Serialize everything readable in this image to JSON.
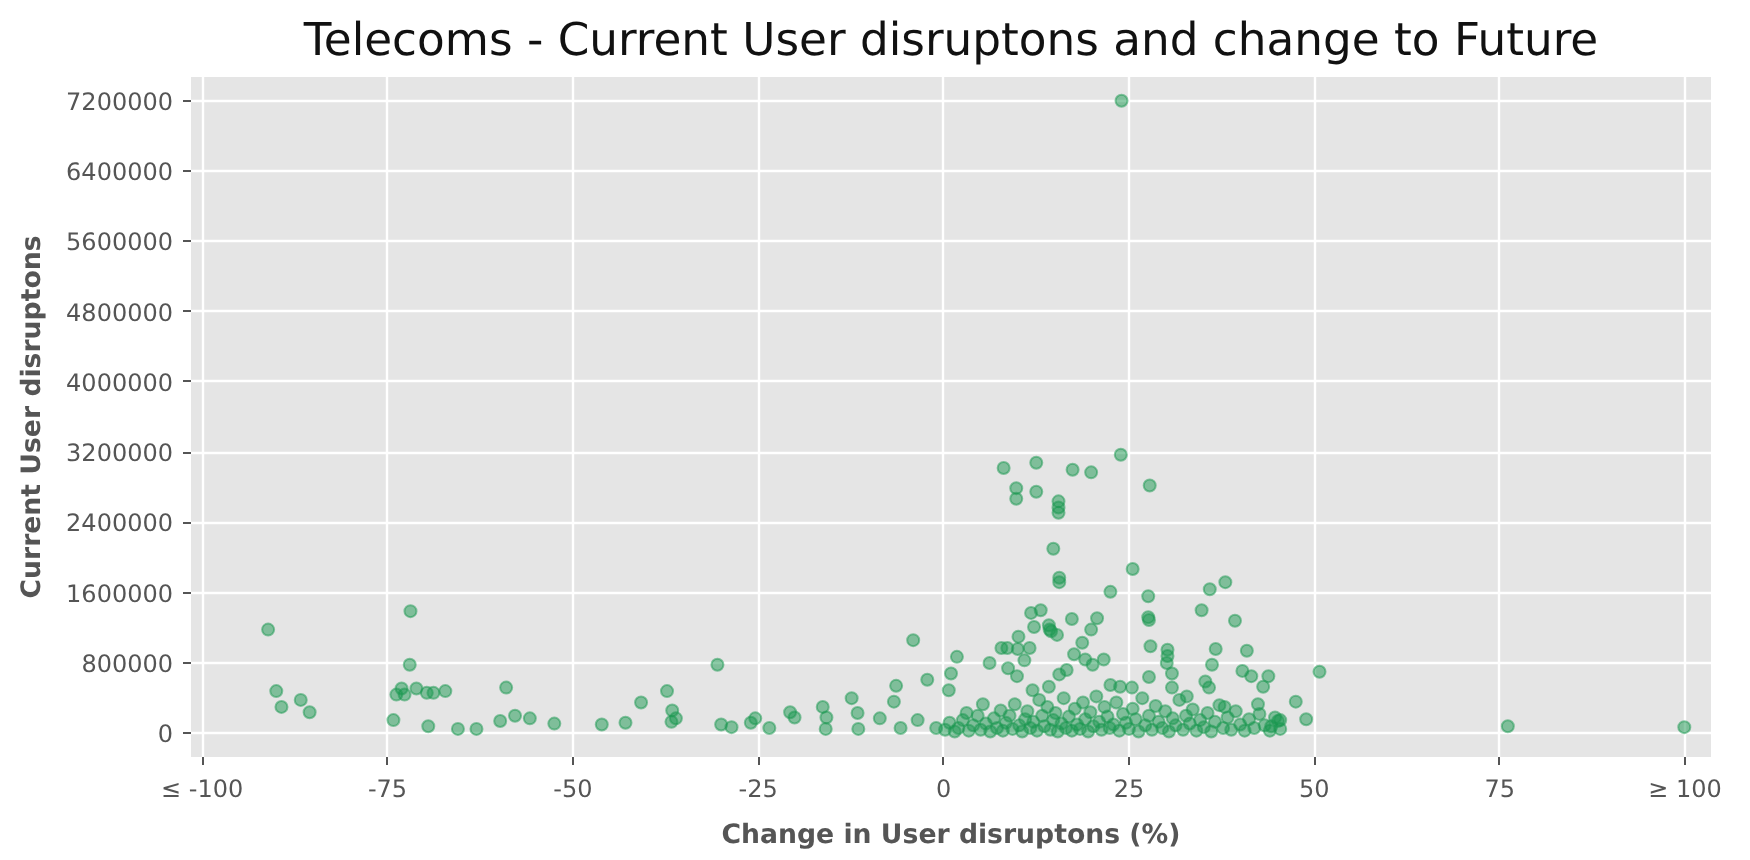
{
  "chart_data": {
    "type": "scatter",
    "title": "Telecoms - Current User disruptons and change to Future",
    "xlabel": "Change in User disruptons (%)",
    "ylabel": "Current User disruptons",
    "xlim": [
      -101.5,
      103.5
    ],
    "ylim": [
      -270000,
      7470000
    ],
    "xticks": [
      {
        "value": -100,
        "label": "≤ -100"
      },
      -75,
      -50,
      -25,
      0,
      25,
      50,
      75,
      {
        "value": 100,
        "label": "≥ 100"
      }
    ],
    "yticks": [
      0,
      800000,
      1600000,
      2400000,
      3200000,
      4000000,
      4800000,
      5600000,
      6400000,
      7200000
    ],
    "grid": true,
    "marker": "circle",
    "series": [
      {
        "color": "#1a9850",
        "x": [
          -91.1,
          -90.0,
          -89.3,
          -86.7,
          -85.5,
          -74.2,
          -73.8,
          -73.1,
          -72.7,
          -72.0,
          -71.9,
          -71.1,
          -69.7,
          -69.5,
          -68.8,
          -67.2,
          -65.5,
          -63.0,
          -59.8,
          -59.0,
          -57.8,
          -55.8,
          -52.5,
          -46.1,
          -42.9,
          -40.8,
          -37.3,
          -36.7,
          -36.6,
          -36.1,
          -30.5,
          -30.0,
          -28.6,
          -26.0,
          -25.4,
          -23.5,
          -20.7,
          -20.1,
          -16.3,
          -15.9,
          -15.8,
          -12.4,
          -11.6,
          -11.5,
          -8.6,
          -6.7,
          -6.4,
          -5.8,
          -4.1,
          -3.5,
          -2.2,
          -1.0,
          0.7,
          1.0,
          1.8,
          3.1,
          5.3,
          6.2,
          7.8,
          8.1,
          8.6,
          8.7,
          9.8,
          9.8,
          9.9,
          10.0,
          10.1,
          10.9,
          11.6,
          11.8,
          12.0,
          12.2,
          12.5,
          12.5,
          13.1,
          14.2,
          14.2,
          14.3,
          14.5,
          14.8,
          15.3,
          15.5,
          15.5,
          15.5,
          15.6,
          15.6,
          15.6,
          16.6,
          17.3,
          17.4,
          17.6,
          18.7,
          19.1,
          19.9,
          19.9,
          20.1,
          20.7,
          21.6,
          22.5,
          22.5,
          23.8,
          23.9,
          24.0,
          25.4,
          25.5,
          27.6,
          27.6,
          27.7,
          27.7,
          27.8,
          27.9,
          30.1,
          30.2,
          30.2,
          30.8,
          30.8,
          32.8,
          34.8,
          35.3,
          35.8,
          35.9,
          36.2,
          36.7,
          37.9,
          38.0,
          39.3,
          40.3,
          40.9,
          41.5,
          42.4,
          43.1,
          43.8,
          44.2,
          45.1,
          45.4,
          45.4,
          47.5,
          48.9,
          50.7,
          76.1,
          99.9,
          0.2,
          0.8,
          1.5,
          2.0,
          2.6,
          3.4,
          4.0,
          4.6,
          5.0,
          5.7,
          6.3,
          6.8,
          7.2,
          7.7,
          8.0,
          8.4,
          8.9,
          9.3,
          9.6,
          10.2,
          10.6,
          11.0,
          11.3,
          11.7,
          12.1,
          12.6,
          12.9,
          13.3,
          13.6,
          14.0,
          14.4,
          14.8,
          15.1,
          15.4,
          15.9,
          16.2,
          16.5,
          16.9,
          17.3,
          17.7,
          18.0,
          18.4,
          18.8,
          19.1,
          19.5,
          19.8,
          20.2,
          20.6,
          21.0,
          21.3,
          21.7,
          22.1,
          22.4,
          22.9,
          23.3,
          23.7,
          24.2,
          24.6,
          25.0,
          25.5,
          25.9,
          26.3,
          26.8,
          27.2,
          27.7,
          28.1,
          28.6,
          29.0,
          29.5,
          29.9,
          30.4,
          30.9,
          31.3,
          31.8,
          32.3,
          32.7,
          33.2,
          33.6,
          34.1,
          34.6,
          35.1,
          35.6,
          36.1,
          36.6,
          37.2,
          37.7,
          38.3,
          38.8,
          39.4,
          40.0,
          40.6,
          41.2,
          41.9,
          42.6,
          43.3,
          44.0,
          44.7
        ],
        "values": [
          1180000,
          480000,
          300000,
          380000,
          240000,
          150000,
          440000,
          510000,
          440000,
          780000,
          1390000,
          510000,
          460000,
          80000,
          460000,
          480000,
          50000,
          50000,
          140000,
          520000,
          200000,
          170000,
          110000,
          100000,
          120000,
          350000,
          480000,
          130000,
          260000,
          170000,
          780000,
          100000,
          70000,
          120000,
          170000,
          60000,
          240000,
          180000,
          300000,
          50000,
          180000,
          400000,
          230000,
          50000,
          170000,
          360000,
          540000,
          60000,
          1060000,
          150000,
          610000,
          60000,
          490000,
          680000,
          870000,
          230000,
          330000,
          800000,
          970000,
          3020000,
          970000,
          740000,
          2790000,
          2670000,
          650000,
          960000,
          1100000,
          830000,
          970000,
          1370000,
          490000,
          1210000,
          3080000,
          2750000,
          1400000,
          1230000,
          530000,
          1180000,
          1160000,
          2100000,
          1120000,
          2640000,
          2570000,
          2510000,
          1770000,
          1720000,
          670000,
          720000,
          1300000,
          3000000,
          900000,
          1030000,
          840000,
          2970000,
          1180000,
          780000,
          1310000,
          840000,
          1610000,
          550000,
          530000,
          3170000,
          7200000,
          520000,
          1870000,
          1320000,
          1560000,
          1290000,
          640000,
          2820000,
          990000,
          800000,
          950000,
          880000,
          680000,
          520000,
          420000,
          1400000,
          590000,
          520000,
          1640000,
          780000,
          960000,
          300000,
          1720000,
          1280000,
          710000,
          940000,
          650000,
          330000,
          530000,
          650000,
          80000,
          140000,
          150000,
          50000,
          360000,
          160000,
          700000,
          80000,
          70000,
          40000,
          120000,
          20000,
          60000,
          150000,
          30000,
          90000,
          200000,
          40000,
          110000,
          20000,
          170000,
          60000,
          260000,
          30000,
          120000,
          200000,
          50000,
          330000,
          90000,
          20000,
          160000,
          250000,
          60000,
          130000,
          30000,
          380000,
          200000,
          80000,
          300000,
          40000,
          150000,
          230000,
          20000,
          110000,
          400000,
          60000,
          190000,
          30000,
          280000,
          100000,
          50000,
          350000,
          160000,
          20000,
          240000,
          80000,
          420000,
          130000,
          40000,
          300000,
          190000,
          60000,
          100000,
          350000,
          30000,
          220000,
          120000,
          50000,
          280000,
          160000,
          20000,
          400000,
          90000,
          200000,
          40000,
          310000,
          130000,
          60000,
          250000,
          20000,
          170000,
          90000,
          380000,
          40000,
          200000,
          110000,
          270000,
          30000,
          150000,
          70000,
          230000,
          20000,
          130000,
          320000,
          60000,
          180000,
          40000,
          250000,
          100000,
          30000,
          160000,
          60000,
          220000,
          90000,
          30000,
          180000
        ]
      }
    ]
  }
}
